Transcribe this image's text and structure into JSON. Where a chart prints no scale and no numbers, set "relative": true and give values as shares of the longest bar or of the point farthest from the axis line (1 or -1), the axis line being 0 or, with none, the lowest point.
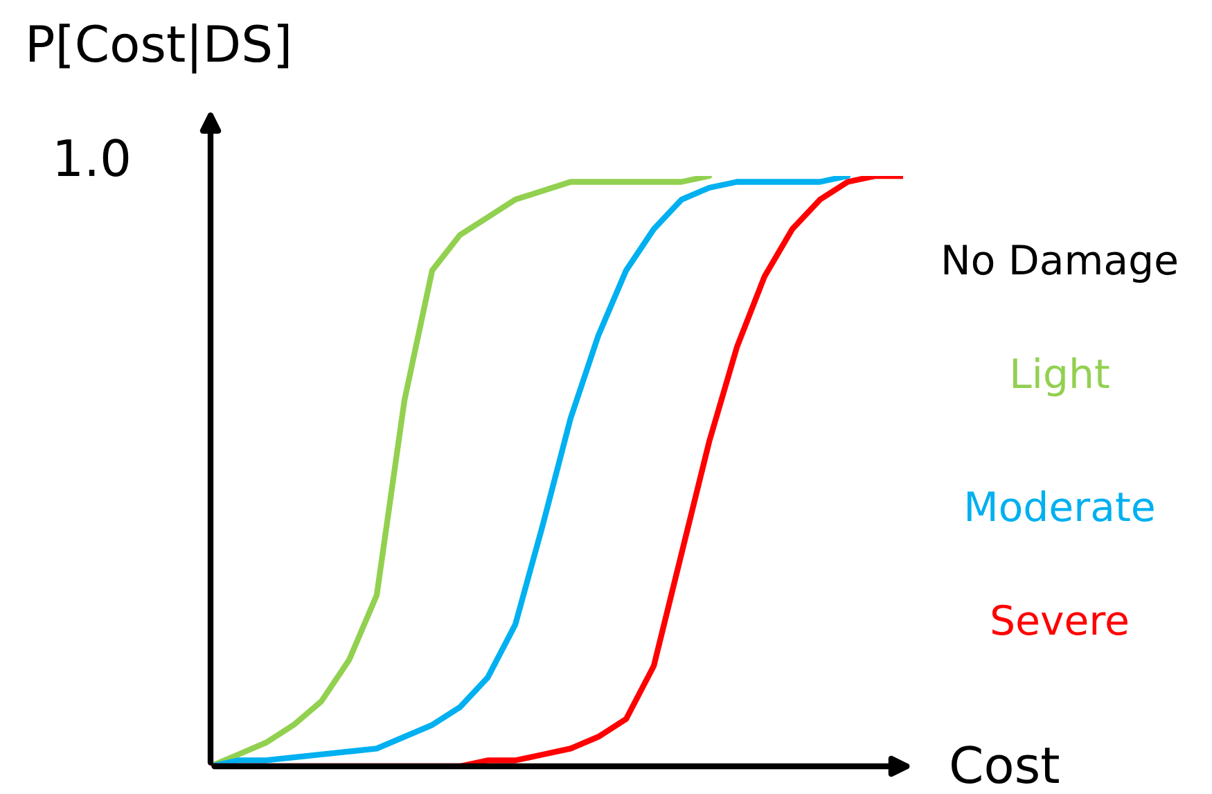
{
  "chart_data": {
    "type": "line",
    "relative": true,
    "xlabel": "Cost",
    "ylabel": "P[Cost|DS]",
    "annotations": [
      "1.0",
      "No Damage"
    ],
    "legend": "right",
    "grid": false,
    "marker": "none",
    "line_style": "solid",
    "categories": [
      null,
      null,
      null,
      null,
      null,
      null,
      null,
      null,
      null,
      null,
      null,
      null,
      null,
      null,
      null,
      null,
      null,
      null,
      null,
      null,
      null,
      null,
      null,
      null,
      null,
      null
    ],
    "series": [
      {
        "name": "Light",
        "color": "#92d050",
        "values": [
          0,
          0.02,
          0.04,
          0.07,
          0.11,
          0.18,
          0.29,
          0.62,
          0.84,
          0.9,
          0.93,
          0.96,
          0.975,
          0.99,
          0.99,
          0.99,
          0.99,
          0.99,
          1.0,
          null,
          null,
          null,
          null,
          null,
          null,
          null
        ]
      },
      {
        "name": "Moderate",
        "color": "#00b0f0",
        "values": [
          0,
          0.01,
          0.01,
          0.015,
          0.02,
          0.025,
          0.03,
          0.05,
          0.07,
          0.1,
          0.15,
          0.24,
          0.41,
          0.59,
          0.73,
          0.84,
          0.91,
          0.96,
          0.98,
          0.99,
          0.99,
          0.99,
          0.99,
          1.0,
          null,
          null
        ]
      },
      {
        "name": "Severe",
        "color": "#ff0000",
        "values": [
          0,
          0,
          0,
          0,
          0,
          0,
          0,
          0,
          0,
          0,
          0.01,
          0.01,
          0.02,
          0.03,
          0.05,
          0.08,
          0.17,
          0.36,
          0.55,
          0.71,
          0.83,
          0.91,
          0.96,
          0.99,
          1.0,
          1.0
        ]
      }
    ]
  }
}
